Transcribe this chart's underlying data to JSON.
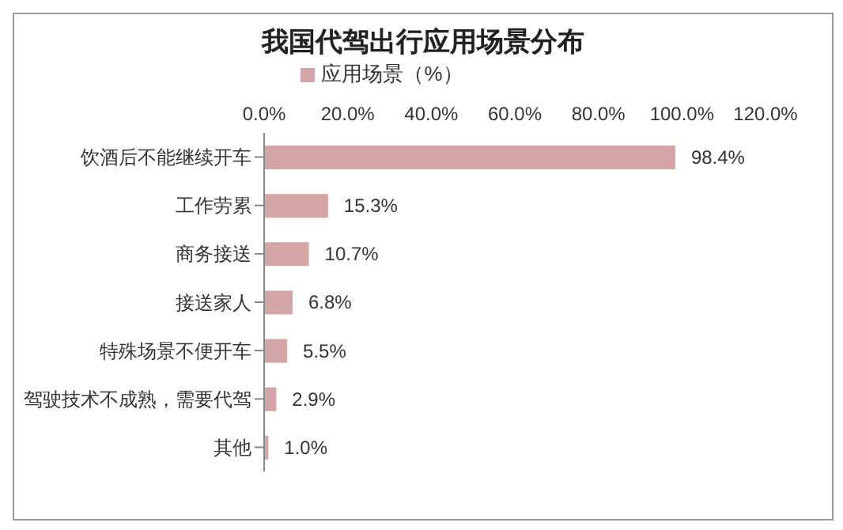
{
  "chart_data": {
    "type": "bar",
    "orientation": "horizontal",
    "title": "我国代驾出行应用场景分布",
    "categories": [
      "饮酒后不能继续开车",
      "工作劳累",
      "商务接送",
      "接送家人",
      "特殊场景不便开车",
      "驾驶技术不成熟，需要代驾",
      "其他"
    ],
    "series": [
      {
        "name": "应用场景（%）",
        "color": "#d4a5a5",
        "values": [
          98.4,
          15.3,
          10.7,
          6.8,
          5.5,
          2.9,
          1.0
        ],
        "value_labels": [
          "98.4%",
          "15.3%",
          "10.7%",
          "6.8%",
          "5.5%",
          "2.9%",
          "1.0%"
        ]
      }
    ],
    "xlim": [
      0,
      120
    ],
    "xticks": [
      {
        "value": 0,
        "label": "0.0%"
      },
      {
        "value": 20,
        "label": "20.0%"
      },
      {
        "value": 40,
        "label": "40.0%"
      },
      {
        "value": 60,
        "label": "60.0%"
      },
      {
        "value": 80,
        "label": "80.0%"
      },
      {
        "value": 100,
        "label": "100.0%"
      },
      {
        "value": 120,
        "label": "120.0%"
      }
    ],
    "grid": false,
    "legend": "top"
  }
}
